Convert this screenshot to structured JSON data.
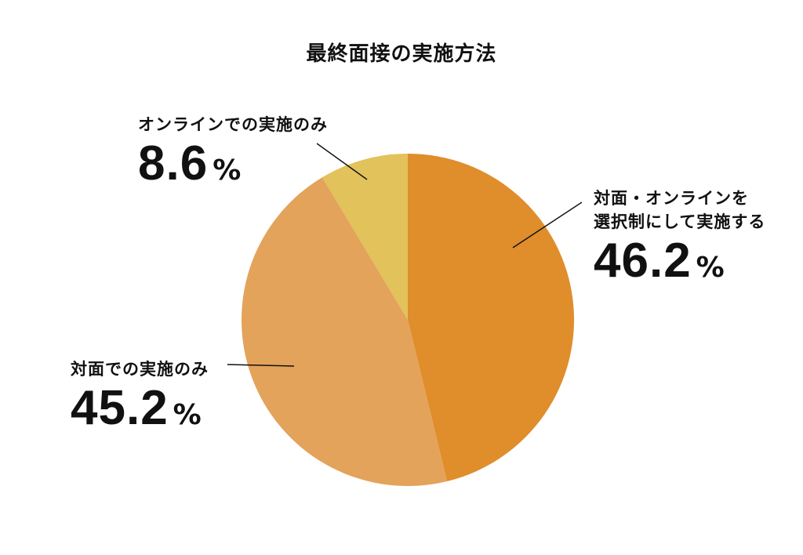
{
  "chart_data": {
    "type": "pie",
    "title": "最終面接の実施方法",
    "slices": [
      {
        "label_lines": [
          "対面・オンラインを",
          "選択制にして実施する"
        ],
        "value": 46.2,
        "value_text": "46.2",
        "unit": "%",
        "color": "#e08d2b"
      },
      {
        "label_lines": [
          "対面での実施のみ"
        ],
        "value": 45.2,
        "value_text": "45.2",
        "unit": "%",
        "color": "#e3a35b"
      },
      {
        "label_lines": [
          "オンラインでの実施のみ"
        ],
        "value": 8.6,
        "value_text": "8.6",
        "unit": "%",
        "color": "#e2c25a"
      }
    ],
    "start_angle_deg": 0,
    "direction": "clockwise",
    "leader_lines": true,
    "legend": "none"
  }
}
